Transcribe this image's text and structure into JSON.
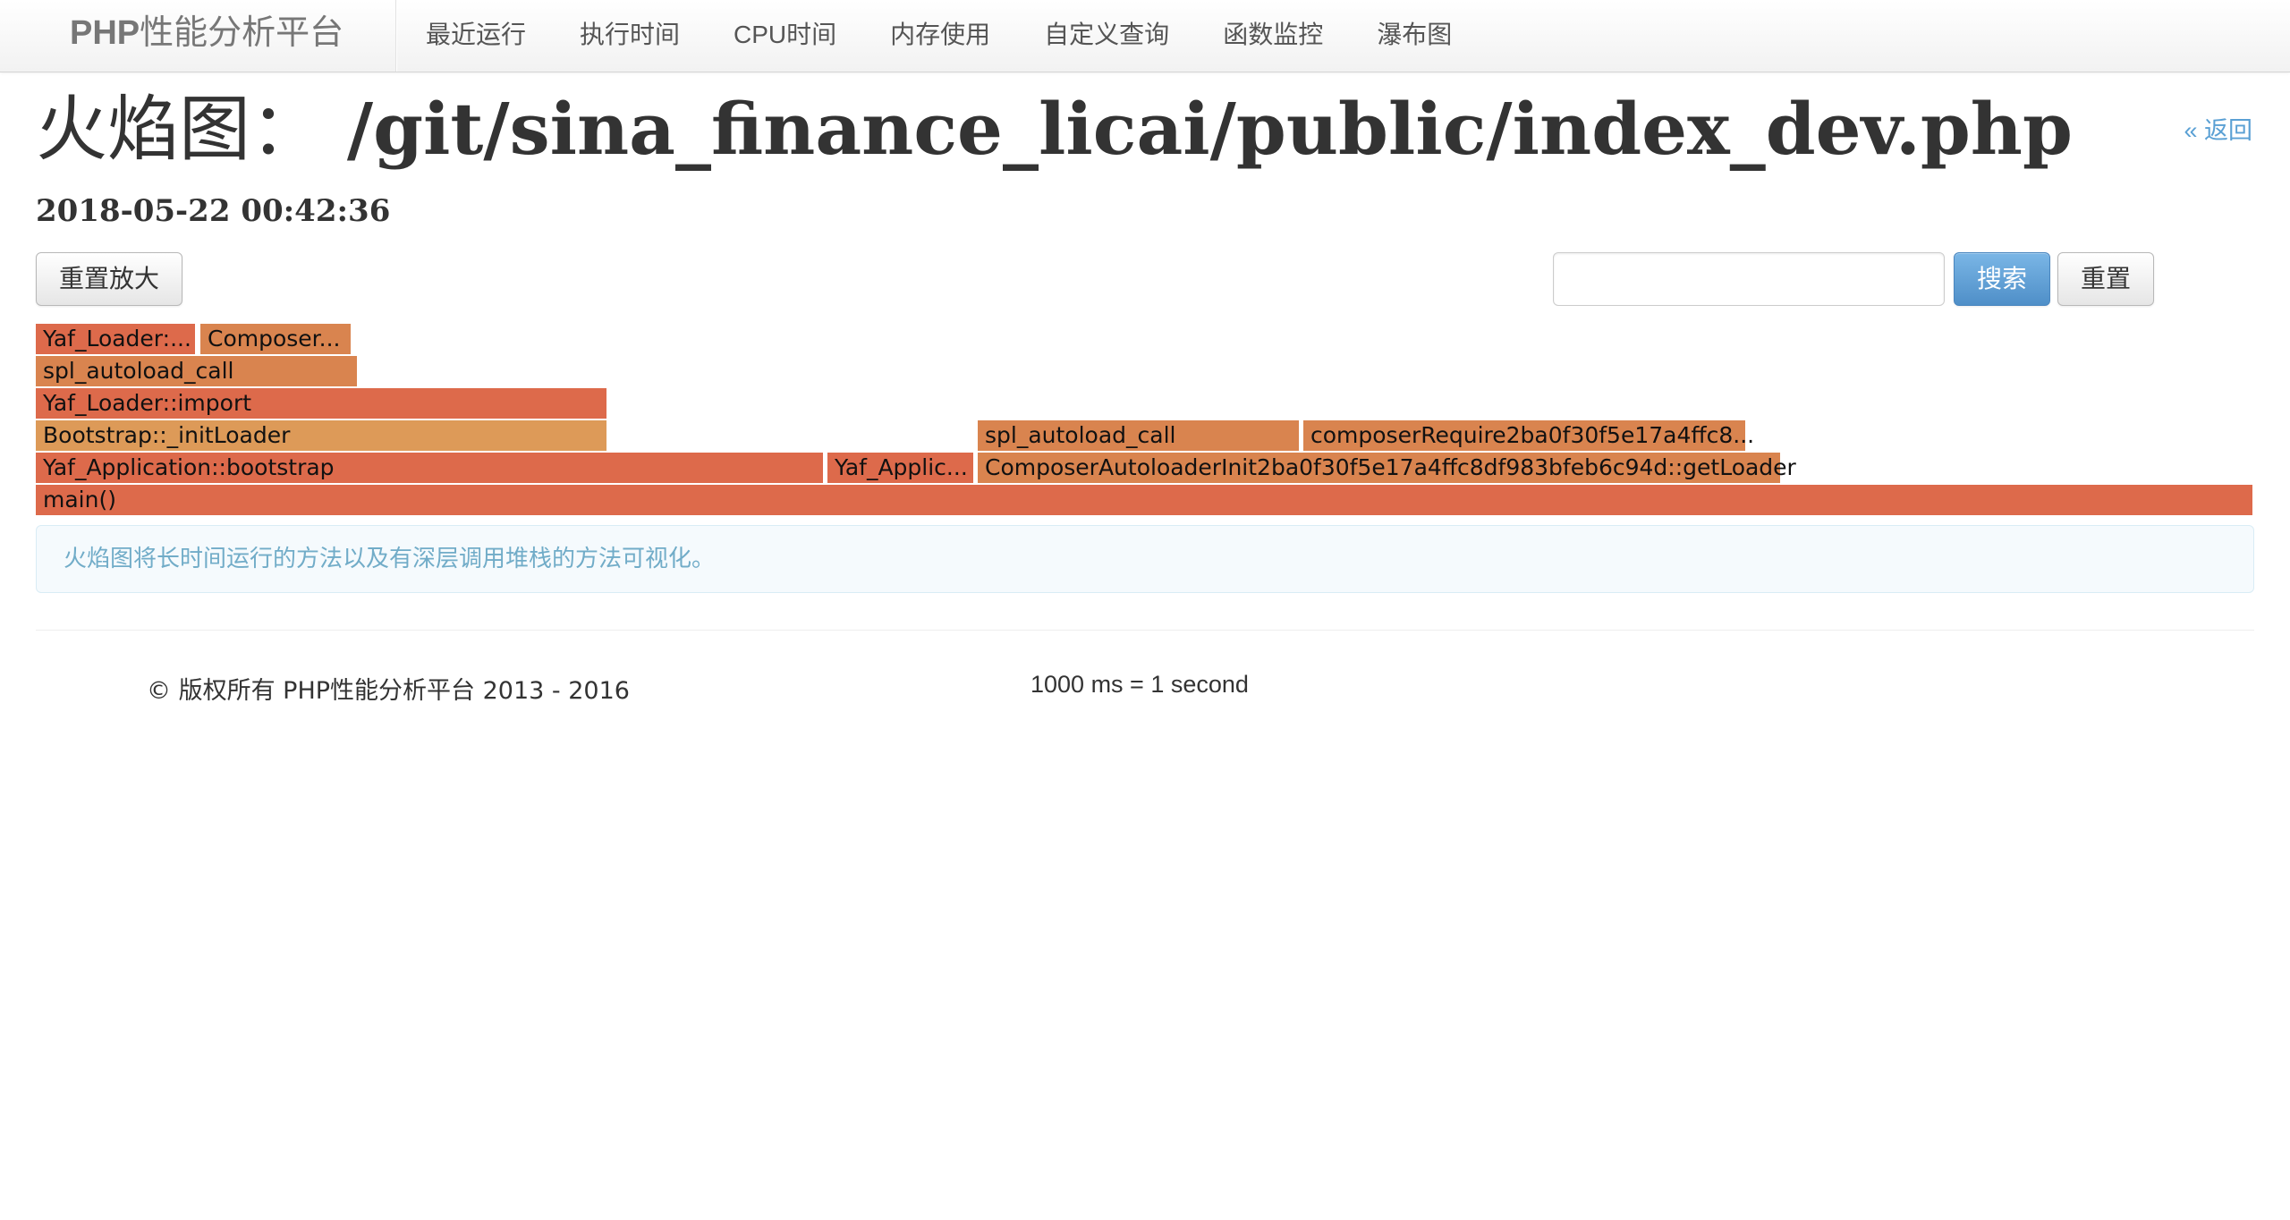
{
  "navbar": {
    "brand_strong": "PHP",
    "brand_rest": "性能分析平台",
    "items": [
      {
        "label": "最近运行"
      },
      {
        "label": "执行时间"
      },
      {
        "label": "CPU时间"
      },
      {
        "label": "内存使用"
      },
      {
        "label": "自定义查询"
      },
      {
        "label": "函数监控"
      },
      {
        "label": "瀑布图"
      }
    ]
  },
  "header": {
    "title_prefix": "火焰图：",
    "title_path": "/git/sina_finance_licai/public/index_dev.php",
    "back_link": "« 返回",
    "timestamp": "2018-05-22 00:42:36"
  },
  "toolbar": {
    "reset_zoom_label": "重置放大",
    "search_value": "",
    "search_label": "搜索",
    "reset_label": "重置"
  },
  "flamegraph": {
    "frames": [
      {
        "label": "Yaf_Loader:...",
        "depth": 5,
        "start": 0.0,
        "end": 0.0725,
        "color": "#dd6a4b"
      },
      {
        "label": "Composer...",
        "depth": 5,
        "start": 0.0741,
        "end": 0.1428,
        "color": "#d9844f"
      },
      {
        "label": "spl_autoload_call",
        "depth": 4,
        "start": 0.0,
        "end": 0.1454,
        "color": "#d9844f"
      },
      {
        "label": "Yaf_Loader::import",
        "depth": 3,
        "start": 0.0,
        "end": 0.2582,
        "color": "#dd6a4b"
      },
      {
        "label": "Bootstrap::_initLoader",
        "depth": 2,
        "start": 0.0,
        "end": 0.2582,
        "color": "#dd9a58"
      },
      {
        "label": "spl_autoload_call",
        "depth": 2,
        "start": 0.4245,
        "end": 0.5702,
        "color": "#d9844f"
      },
      {
        "label": "composerRequire2ba0f30f5e17a4ffc8...",
        "depth": 2,
        "start": 0.5714,
        "end": 0.7712,
        "color": "#d9844f"
      },
      {
        "label": "Yaf_Application::bootstrap",
        "depth": 1,
        "start": 0.0,
        "end": 0.3556,
        "color": "#dd6a4b"
      },
      {
        "label": "Yaf_Applic...",
        "depth": 1,
        "start": 0.3569,
        "end": 0.4233,
        "color": "#dd6a4b"
      },
      {
        "label": "ComposerAutoloaderInit2ba0f30f5e17a4ffc8df983bfeb6c94d::getLoader",
        "depth": 1,
        "start": 0.4245,
        "end": 0.7869,
        "color": "#d9844f"
      },
      {
        "label": "main()",
        "depth": 0,
        "start": 0.0,
        "end": 1.0,
        "color": "#dd6a4b"
      }
    ],
    "description": "火焰图将长时间运行的方法以及有深层调用堆栈的方法可视化。"
  },
  "footer": {
    "copyright": "© 版权所有 PHP性能分析平台 2013 - 2016",
    "scale": "1000 ms = 1 second"
  }
}
